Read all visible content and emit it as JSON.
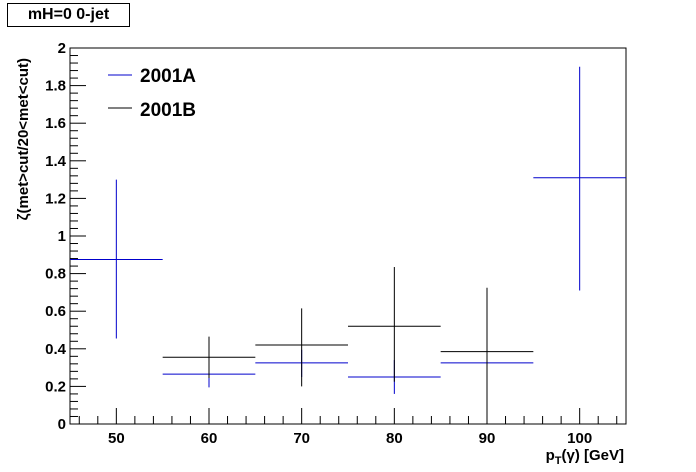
{
  "chart_data": {
    "type": "scatter",
    "title": "mH=0 0-jet",
    "xlabel": "p_T(γ) [GeV]",
    "xlabel_parts": {
      "p": "p",
      "sub": "T",
      "rest": "(γ) [GeV]"
    },
    "ylabel": "ζ(met>cut/20<met<cut)",
    "xlim": [
      45,
      105
    ],
    "ylim": [
      0,
      2
    ],
    "x_ticks": [
      50,
      60,
      70,
      80,
      90,
      100
    ],
    "y_ticks": [
      0,
      0.2,
      0.4,
      0.6,
      0.8,
      1,
      1.2,
      1.4,
      1.6,
      1.8,
      2
    ],
    "y_tick_labels": [
      "0",
      "0.2",
      "0.4",
      "0.6",
      "0.8",
      "1",
      "1.2",
      "1.4",
      "1.6",
      "1.8",
      "2"
    ],
    "x_tick_labels": [
      "50",
      "60",
      "70",
      "80",
      "90",
      "100"
    ],
    "legend_position": "top-left",
    "series": [
      {
        "name": "2001A",
        "color": "#0000cc",
        "points": [
          {
            "x": 50,
            "xerr": 5,
            "y": 0.875,
            "ylow": 0.455,
            "yhigh": 1.3
          },
          {
            "x": 60,
            "xerr": 5,
            "y": 0.265,
            "ylow": 0.195,
            "yhigh": 0.335
          },
          {
            "x": 70,
            "xerr": 5,
            "y": 0.325,
            "ylow": 0.25,
            "yhigh": 0.395
          },
          {
            "x": 80,
            "xerr": 5,
            "y": 0.25,
            "ylow": 0.16,
            "yhigh": 0.34
          },
          {
            "x": 90,
            "xerr": 5,
            "y": 0.325,
            "ylow": 0.22,
            "yhigh": 0.42
          },
          {
            "x": 100,
            "xerr": 5,
            "y": 1.31,
            "ylow": 0.71,
            "yhigh": 1.9
          }
        ]
      },
      {
        "name": "2001B",
        "color": "#000000",
        "points": [
          {
            "x": 60,
            "xerr": 5,
            "y": 0.355,
            "ylow": 0.245,
            "yhigh": 0.465
          },
          {
            "x": 70,
            "xerr": 5,
            "y": 0.42,
            "ylow": 0.2,
            "yhigh": 0.615
          },
          {
            "x": 80,
            "xerr": 5,
            "y": 0.52,
            "ylow": 0.225,
            "yhigh": 0.835
          },
          {
            "x": 90,
            "xerr": 5,
            "y": 0.385,
            "ylow": 0.0,
            "yhigh": 0.725
          }
        ]
      }
    ]
  }
}
